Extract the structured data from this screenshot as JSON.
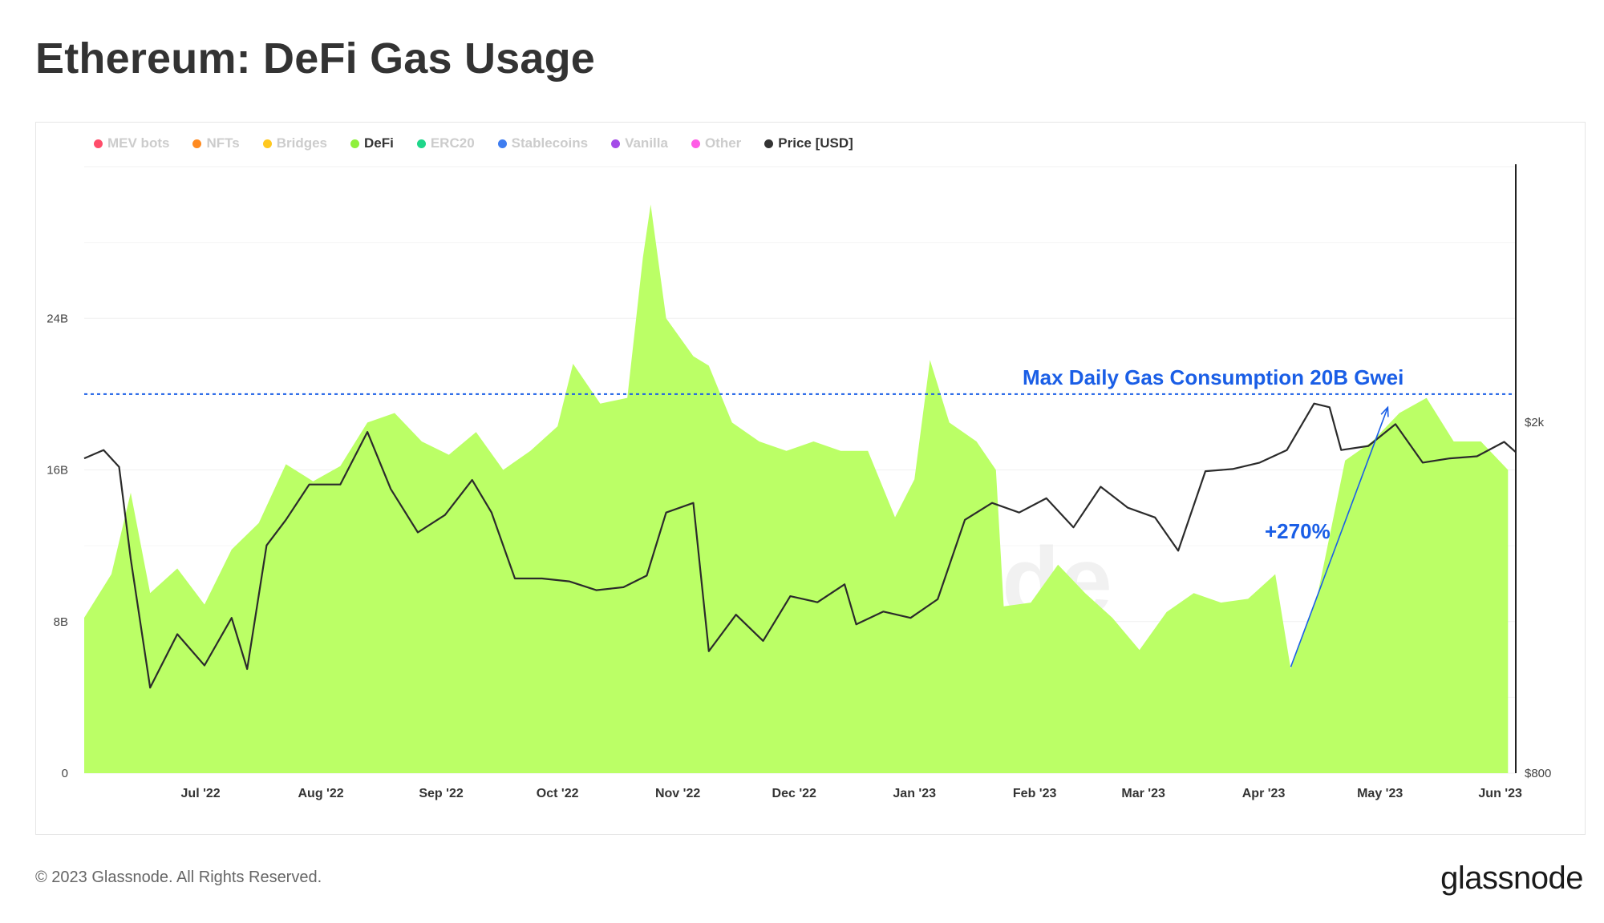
{
  "page": {
    "title": "Ethereum: DeFi Gas Usage",
    "copyright": "© 2023 Glassnode. All Rights Reserved.",
    "logo": "glassnode",
    "watermark": "glassnode"
  },
  "legend": [
    {
      "label": "MEV bots",
      "color": "#ff4d6a",
      "active": false
    },
    {
      "label": "NFTs",
      "color": "#ff8a1f",
      "active": false
    },
    {
      "label": "Bridges",
      "color": "#ffc81f",
      "active": false
    },
    {
      "label": "DeFi",
      "color": "#8ff03c",
      "active": true
    },
    {
      "label": "ERC20",
      "color": "#1fd68a",
      "active": false
    },
    {
      "label": "Stablecoins",
      "color": "#3f7df0",
      "active": false
    },
    {
      "label": "Vanilla",
      "color": "#a44be8",
      "active": false
    },
    {
      "label": "Other",
      "color": "#ff5ce6",
      "active": false
    },
    {
      "label": "Price [USD]",
      "color": "#333333",
      "active": true
    }
  ],
  "chart_data": {
    "type": "area",
    "title": "Ethereum: DeFi Gas Usage",
    "colors": {
      "defi_fill": "#bbff66",
      "price_line": "#2b2b2b",
      "annotation": "#1a5ee6"
    },
    "x_ticks": [
      "Jul '22",
      "Aug '22",
      "Sep '22",
      "Oct '22",
      "Nov '22",
      "Dec '22",
      "Jan '23",
      "Feb '23",
      "Mar '23",
      "Apr '23",
      "May '23",
      "Jun '23"
    ],
    "y_left": {
      "ticks": [
        "0",
        "8B",
        "16B",
        "24B"
      ],
      "ylim": [
        0,
        32
      ]
    },
    "y_right": {
      "ticks": [
        "$800",
        "$2k"
      ],
      "scale": "log"
    },
    "x_range": [
      "2022-06-01",
      "2023-06-05"
    ],
    "reference_line": {
      "value": 20,
      "label": "Max Daily Gas Consumption 20B Gwei",
      "style": "dashed"
    },
    "annotation": {
      "label": "+270%",
      "from": {
        "x": "2023-04-08",
        "y": 5.6
      },
      "to": {
        "x": "2023-05-03",
        "y": 19.3
      }
    },
    "series": [
      {
        "name": "DeFi",
        "unit": "B Gwei",
        "points": [
          [
            "2022-06-01",
            8.2
          ],
          [
            "2022-06-08",
            10.5
          ],
          [
            "2022-06-13",
            14.8
          ],
          [
            "2022-06-18",
            9.5
          ],
          [
            "2022-06-25",
            10.8
          ],
          [
            "2022-07-02",
            8.9
          ],
          [
            "2022-07-09",
            11.8
          ],
          [
            "2022-07-16",
            13.2
          ],
          [
            "2022-07-23",
            16.3
          ],
          [
            "2022-07-30",
            15.4
          ],
          [
            "2022-08-06",
            16.2
          ],
          [
            "2022-08-13",
            18.5
          ],
          [
            "2022-08-20",
            19.0
          ],
          [
            "2022-08-27",
            17.5
          ],
          [
            "2022-09-03",
            16.8
          ],
          [
            "2022-09-10",
            18.0
          ],
          [
            "2022-09-17",
            16.0
          ],
          [
            "2022-09-24",
            17.0
          ],
          [
            "2022-10-01",
            18.3
          ],
          [
            "2022-10-05",
            21.6
          ],
          [
            "2022-10-12",
            19.5
          ],
          [
            "2022-10-19",
            19.8
          ],
          [
            "2022-10-23",
            27.2
          ],
          [
            "2022-10-25",
            30.0
          ],
          [
            "2022-10-29",
            24.0
          ],
          [
            "2022-11-05",
            22.0
          ],
          [
            "2022-11-09",
            21.5
          ],
          [
            "2022-11-15",
            18.5
          ],
          [
            "2022-11-22",
            17.5
          ],
          [
            "2022-11-29",
            17.0
          ],
          [
            "2022-12-06",
            17.5
          ],
          [
            "2022-12-13",
            17.0
          ],
          [
            "2022-12-20",
            17.0
          ],
          [
            "2022-12-27",
            13.5
          ],
          [
            "2023-01-01",
            15.5
          ],
          [
            "2023-01-05",
            21.8
          ],
          [
            "2023-01-10",
            18.5
          ],
          [
            "2023-01-17",
            17.5
          ],
          [
            "2023-01-22",
            16.0
          ],
          [
            "2023-01-24",
            8.8
          ],
          [
            "2023-01-31",
            9.0
          ],
          [
            "2023-02-07",
            11.0
          ],
          [
            "2023-02-14",
            9.5
          ],
          [
            "2023-02-21",
            8.2
          ],
          [
            "2023-02-28",
            6.5
          ],
          [
            "2023-03-07",
            8.5
          ],
          [
            "2023-03-14",
            9.5
          ],
          [
            "2023-03-21",
            9.0
          ],
          [
            "2023-03-28",
            9.2
          ],
          [
            "2023-04-04",
            10.5
          ],
          [
            "2023-04-08",
            5.5
          ],
          [
            "2023-04-15",
            9.5
          ],
          [
            "2023-04-22",
            16.5
          ],
          [
            "2023-04-29",
            17.5
          ],
          [
            "2023-05-06",
            19.0
          ],
          [
            "2023-05-13",
            19.8
          ],
          [
            "2023-05-20",
            17.5
          ],
          [
            "2023-05-27",
            17.5
          ],
          [
            "2023-06-03",
            16.0
          ]
        ]
      },
      {
        "name": "Price [USD]",
        "unit": "USD",
        "points": [
          [
            "2022-06-01",
            1820
          ],
          [
            "2022-06-06",
            1860
          ],
          [
            "2022-06-10",
            1780
          ],
          [
            "2022-06-13",
            1400
          ],
          [
            "2022-06-18",
            1000
          ],
          [
            "2022-06-25",
            1150
          ],
          [
            "2022-07-02",
            1060
          ],
          [
            "2022-07-09",
            1200
          ],
          [
            "2022-07-13",
            1050
          ],
          [
            "2022-07-18",
            1450
          ],
          [
            "2022-07-23",
            1550
          ],
          [
            "2022-07-29",
            1700
          ],
          [
            "2022-08-06",
            1700
          ],
          [
            "2022-08-13",
            1950
          ],
          [
            "2022-08-19",
            1680
          ],
          [
            "2022-08-26",
            1500
          ],
          [
            "2022-09-02",
            1570
          ],
          [
            "2022-09-09",
            1720
          ],
          [
            "2022-09-14",
            1580
          ],
          [
            "2022-09-20",
            1330
          ],
          [
            "2022-09-27",
            1330
          ],
          [
            "2022-10-04",
            1320
          ],
          [
            "2022-10-11",
            1290
          ],
          [
            "2022-10-18",
            1300
          ],
          [
            "2022-10-24",
            1340
          ],
          [
            "2022-10-29",
            1580
          ],
          [
            "2022-11-05",
            1620
          ],
          [
            "2022-11-09",
            1100
          ],
          [
            "2022-11-16",
            1210
          ],
          [
            "2022-11-23",
            1130
          ],
          [
            "2022-11-30",
            1270
          ],
          [
            "2022-12-07",
            1250
          ],
          [
            "2022-12-14",
            1310
          ],
          [
            "2022-12-17",
            1180
          ],
          [
            "2022-12-24",
            1220
          ],
          [
            "2022-12-31",
            1200
          ],
          [
            "2023-01-07",
            1260
          ],
          [
            "2023-01-14",
            1550
          ],
          [
            "2023-01-21",
            1620
          ],
          [
            "2023-01-28",
            1580
          ],
          [
            "2023-02-04",
            1640
          ],
          [
            "2023-02-11",
            1520
          ],
          [
            "2023-02-18",
            1690
          ],
          [
            "2023-02-25",
            1600
          ],
          [
            "2023-03-04",
            1560
          ],
          [
            "2023-03-10",
            1430
          ],
          [
            "2023-03-17",
            1760
          ],
          [
            "2023-03-24",
            1770
          ],
          [
            "2023-03-31",
            1800
          ],
          [
            "2023-04-07",
            1860
          ],
          [
            "2023-04-14",
            2100
          ],
          [
            "2023-04-18",
            2080
          ],
          [
            "2023-04-21",
            1860
          ],
          [
            "2023-04-28",
            1880
          ],
          [
            "2023-05-05",
            1990
          ],
          [
            "2023-05-12",
            1800
          ],
          [
            "2023-05-19",
            1820
          ],
          [
            "2023-05-26",
            1830
          ],
          [
            "2023-06-02",
            1900
          ],
          [
            "2023-06-05",
            1850
          ]
        ]
      }
    ]
  }
}
